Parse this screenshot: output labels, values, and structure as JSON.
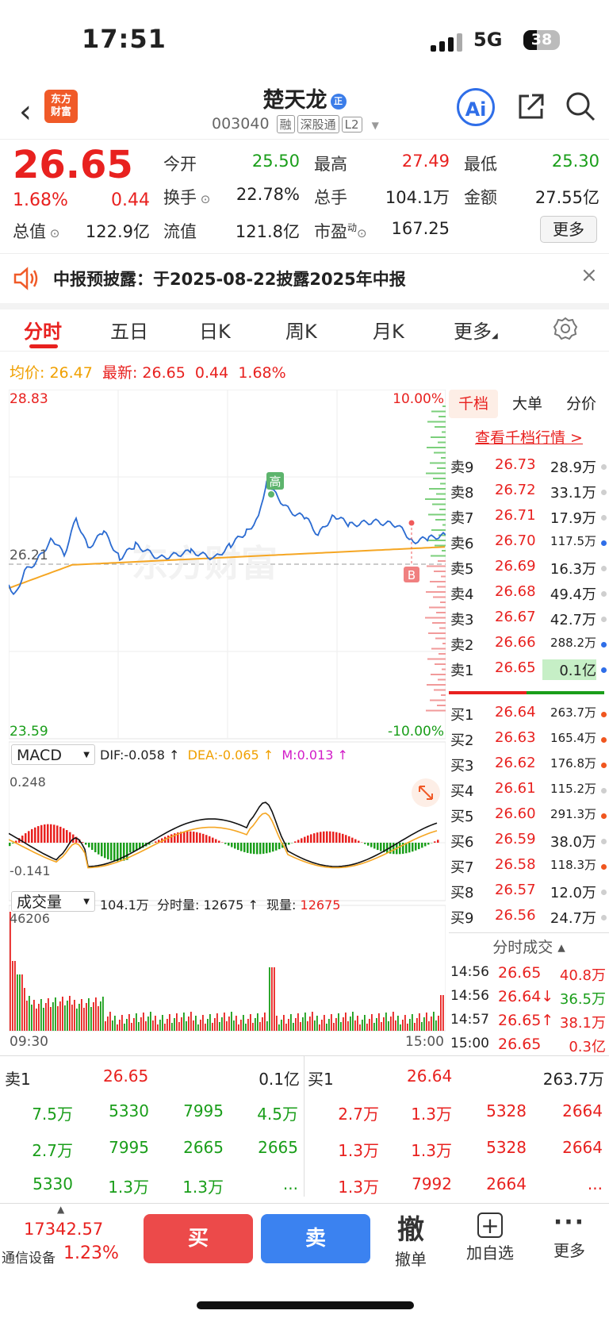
{
  "status": {
    "time": "17:51",
    "network": "5G",
    "battery": "38",
    "battery_level": 0.38
  },
  "header": {
    "title": "楚天龙",
    "title_badge": "正",
    "code": "003040",
    "tags": [
      "融",
      "深股通",
      "L2"
    ],
    "logo_text": "东方财富",
    "ai_label": "Ai"
  },
  "quote": {
    "price": "26.65",
    "change_pct": "1.68%",
    "change": "0.44",
    "open_label": "今开",
    "open": "25.50",
    "high_label": "最高",
    "high": "27.49",
    "low_label": "最低",
    "low": "25.30",
    "turnover_label": "换手",
    "turnover": "22.78%",
    "volume_label": "总手",
    "volume": "104.1万",
    "amount_label": "金额",
    "amount": "27.55亿",
    "mktcap_label": "总值",
    "mktcap": "122.9亿",
    "float_label": "流值",
    "float": "121.8亿",
    "pe_label": "市盈",
    "pe_sup": "动",
    "pe": "167.25",
    "more": "更多"
  },
  "notice": {
    "label": "中报预披露：",
    "text": "于2025-08-22披露2025年中报"
  },
  "tabs": [
    "分时",
    "五日",
    "日K",
    "周K",
    "月K",
    "更多"
  ],
  "infoline": {
    "avg_label": "均价:",
    "avg": "26.47",
    "last_label": "最新:",
    "last": "26.65",
    "chg": "0.44",
    "pct": "1.68%"
  },
  "chart": {
    "ymax": "28.83",
    "ymin": "23.59",
    "pct_max": "10.00%",
    "pct_min": "-10.00%",
    "prev_close": "26.21",
    "high_marker": "高",
    "b_marker": "B",
    "watermark": "东方财富",
    "macd_label": "MACD",
    "dif": "DIF:-0.058 ↑",
    "dea": "DEA:-0.065 ↑",
    "m": "M:0.013 ↑",
    "macd_max": "0.248",
    "macd_min": "-0.141",
    "vol_label": "成交量",
    "vol_total": "104.1万",
    "vol_fs": "分时量: 12675 ↑",
    "vol_now_label": "现量:",
    "vol_now": "12675",
    "vol_max": "46206",
    "t_start": "09:30",
    "t_end": "15:00"
  },
  "orderbook": {
    "tabs": [
      "千档",
      "大单",
      "分价"
    ],
    "link": "查看千档行情 >",
    "sells": [
      {
        "l": "卖9",
        "p": "26.73",
        "v": "28.9万",
        "c": "#cfcfcf"
      },
      {
        "l": "卖8",
        "p": "26.72",
        "v": "33.1万",
        "c": "#cfcfcf"
      },
      {
        "l": "卖7",
        "p": "26.71",
        "v": "17.9万",
        "c": "#cfcfcf"
      },
      {
        "l": "卖6",
        "p": "26.70",
        "v": "117.5万",
        "c": "#2f6ee8"
      },
      {
        "l": "卖5",
        "p": "26.69",
        "v": "16.3万",
        "c": "#cfcfcf"
      },
      {
        "l": "卖4",
        "p": "26.68",
        "v": "49.4万",
        "c": "#cfcfcf"
      },
      {
        "l": "卖3",
        "p": "26.67",
        "v": "42.7万",
        "c": "#cfcfcf"
      },
      {
        "l": "卖2",
        "p": "26.66",
        "v": "288.2万",
        "c": "#2f6ee8"
      },
      {
        "l": "卖1",
        "p": "26.65",
        "v": "0.1亿",
        "c": "#2f6ee8"
      }
    ],
    "buys": [
      {
        "l": "买1",
        "p": "26.64",
        "v": "263.7万",
        "c": "#f0561f"
      },
      {
        "l": "买2",
        "p": "26.63",
        "v": "165.4万",
        "c": "#f0561f"
      },
      {
        "l": "买3",
        "p": "26.62",
        "v": "176.8万",
        "c": "#f0561f"
      },
      {
        "l": "买4",
        "p": "26.61",
        "v": "115.2万",
        "c": "#cfcfcf"
      },
      {
        "l": "买5",
        "p": "26.60",
        "v": "291.3万",
        "c": "#f0561f"
      },
      {
        "l": "买6",
        "p": "26.59",
        "v": "38.0万",
        "c": "#cfcfcf"
      },
      {
        "l": "买7",
        "p": "26.58",
        "v": "118.3万",
        "c": "#f0561f"
      },
      {
        "l": "买8",
        "p": "26.57",
        "v": "12.0万",
        "c": "#cfcfcf"
      },
      {
        "l": "买9",
        "p": "26.56",
        "v": "24.7万",
        "c": "#cfcfcf"
      }
    ],
    "trades_label": "分时成交",
    "trades": [
      {
        "t": "14:56",
        "p": "26.65",
        "v": "40.8万",
        "vc": "red"
      },
      {
        "t": "14:56",
        "p": "26.64↓",
        "v": "36.5万",
        "vc": "green"
      },
      {
        "t": "14:57",
        "p": "26.65↑",
        "v": "38.1万",
        "vc": "red"
      },
      {
        "t": "15:00",
        "p": "26.65",
        "v": "0.3亿",
        "vc": "red"
      }
    ]
  },
  "bottom": {
    "sell_label": "卖1",
    "sell_price": "26.65",
    "sell_vol": "0.1亿",
    "buy_label": "买1",
    "buy_price": "26.64",
    "buy_vol": "263.7万",
    "sell_rows": [
      [
        "7.5万",
        "5330",
        "7995",
        "4.5万"
      ],
      [
        "2.7万",
        "7995",
        "2665",
        "2665"
      ],
      [
        "5330",
        "1.3万",
        "1.3万",
        "..."
      ]
    ],
    "buy_rows": [
      [
        "2.7万",
        "1.3万",
        "5328",
        "2664"
      ],
      [
        "1.3万",
        "1.3万",
        "5328",
        "2664"
      ],
      [
        "1.3万",
        "7992",
        "2664",
        "..."
      ]
    ]
  },
  "footer": {
    "index": "17342.57",
    "sector": "通信设备",
    "sector_pct": "1.23%",
    "buy": "买",
    "sell": "卖",
    "cancel_icon": "撤",
    "cancel": "撤单",
    "add": "加自选",
    "more": "更多"
  }
}
